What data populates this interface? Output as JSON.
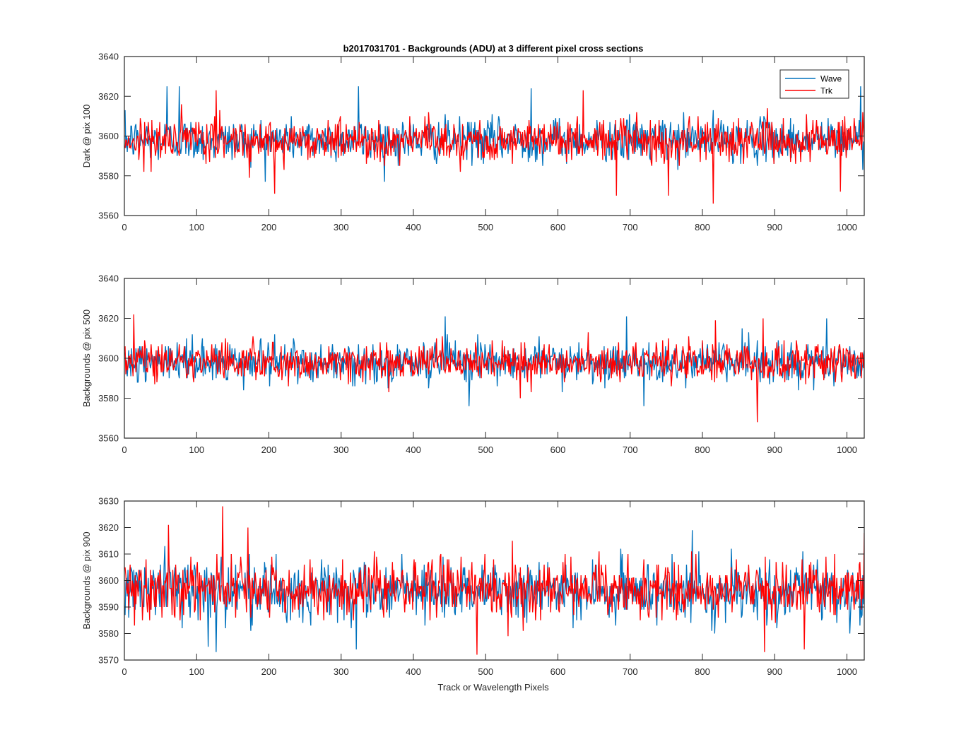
{
  "figure": {
    "title": "b2017031701 - Backgrounds (ADU) at 3 different pixel cross sections",
    "xlabel": "Track or Wavelength Pixels",
    "colors": {
      "wave": "#0072BD",
      "trk": "#FF0000",
      "axis": "#262626",
      "background": "#ffffff"
    },
    "legend": {
      "placement": "top-right",
      "entries": [
        "Wave",
        "Trk"
      ]
    }
  },
  "chart_data": [
    {
      "type": "line",
      "ylabel": "Dark @ pix 100",
      "xlim": [
        0,
        1024
      ],
      "ylim": [
        3560,
        3640
      ],
      "xticks": [
        0,
        100,
        200,
        300,
        400,
        500,
        600,
        700,
        800,
        900,
        1000
      ],
      "yticks": [
        3560,
        3580,
        3600,
        3620,
        3640
      ],
      "legend": true,
      "series": [
        {
          "name": "Wave",
          "color": "#0072BD",
          "n_points": 1024,
          "mean": 3598,
          "std": 6.5,
          "min": 3576,
          "max": 3625,
          "notable_points": [
            [
              58,
              3625
            ],
            [
              75,
              3625
            ],
            [
              323,
              3625
            ],
            [
              562,
              3624
            ],
            [
              1018,
              3625
            ]
          ]
        },
        {
          "name": "Trk",
          "color": "#FF0000",
          "n_points": 1024,
          "mean": 3598,
          "std": 6.5,
          "min": 3566,
          "max": 3623,
          "notable_points": [
            [
              126,
              3623
            ],
            [
              634,
              3623
            ],
            [
              207,
              3571
            ],
            [
              680,
              3570
            ],
            [
              752,
              3570
            ],
            [
              814,
              3566
            ],
            [
              990,
              3572
            ]
          ]
        }
      ]
    },
    {
      "type": "line",
      "ylabel": "Backgrounds @ pix 500",
      "xlim": [
        0,
        1024
      ],
      "ylim": [
        3560,
        3640
      ],
      "xticks": [
        0,
        100,
        200,
        300,
        400,
        500,
        600,
        700,
        800,
        900,
        1000
      ],
      "yticks": [
        3560,
        3580,
        3600,
        3620,
        3640
      ],
      "legend": false,
      "series": [
        {
          "name": "Wave",
          "color": "#0072BD",
          "n_points": 1024,
          "mean": 3598,
          "std": 6.0,
          "min": 3576,
          "max": 3621,
          "notable_points": [
            [
              443,
              3621
            ],
            [
              694,
              3621
            ],
            [
              971,
              3620
            ],
            [
              476,
              3576
            ],
            [
              718,
              3576
            ]
          ]
        },
        {
          "name": "Trk",
          "color": "#FF0000",
          "n_points": 1024,
          "mean": 3598,
          "std": 6.0,
          "min": 3568,
          "max": 3622,
          "notable_points": [
            [
              12,
              3622
            ],
            [
              817,
              3619
            ],
            [
              883,
              3620
            ],
            [
              875,
              3568
            ]
          ]
        }
      ]
    },
    {
      "type": "line",
      "ylabel": "Backgrounds @ pix 900",
      "xlim": [
        0,
        1024
      ],
      "ylim": [
        3570,
        3630
      ],
      "xticks": [
        0,
        100,
        200,
        300,
        400,
        500,
        600,
        700,
        800,
        900,
        1000
      ],
      "yticks": [
        3570,
        3580,
        3590,
        3600,
        3610,
        3620,
        3630
      ],
      "legend": false,
      "series": [
        {
          "name": "Wave",
          "color": "#0072BD",
          "n_points": 1024,
          "mean": 3596,
          "std": 6.5,
          "min": 3573,
          "max": 3619,
          "notable_points": [
            [
              126,
              3573
            ],
            [
              320,
              3574
            ],
            [
              785,
              3619
            ],
            [
              115,
              3575
            ]
          ]
        },
        {
          "name": "Trk",
          "color": "#FF0000",
          "n_points": 1024,
          "mean": 3597,
          "std": 6.5,
          "min": 3572,
          "max": 3628,
          "notable_points": [
            [
              135,
              3628
            ],
            [
              60,
              3621
            ],
            [
              170,
              3620
            ],
            [
              487,
              3572
            ],
            [
              885,
              3573
            ],
            [
              940,
              3574
            ],
            [
              1024,
              3618
            ]
          ]
        }
      ]
    }
  ]
}
